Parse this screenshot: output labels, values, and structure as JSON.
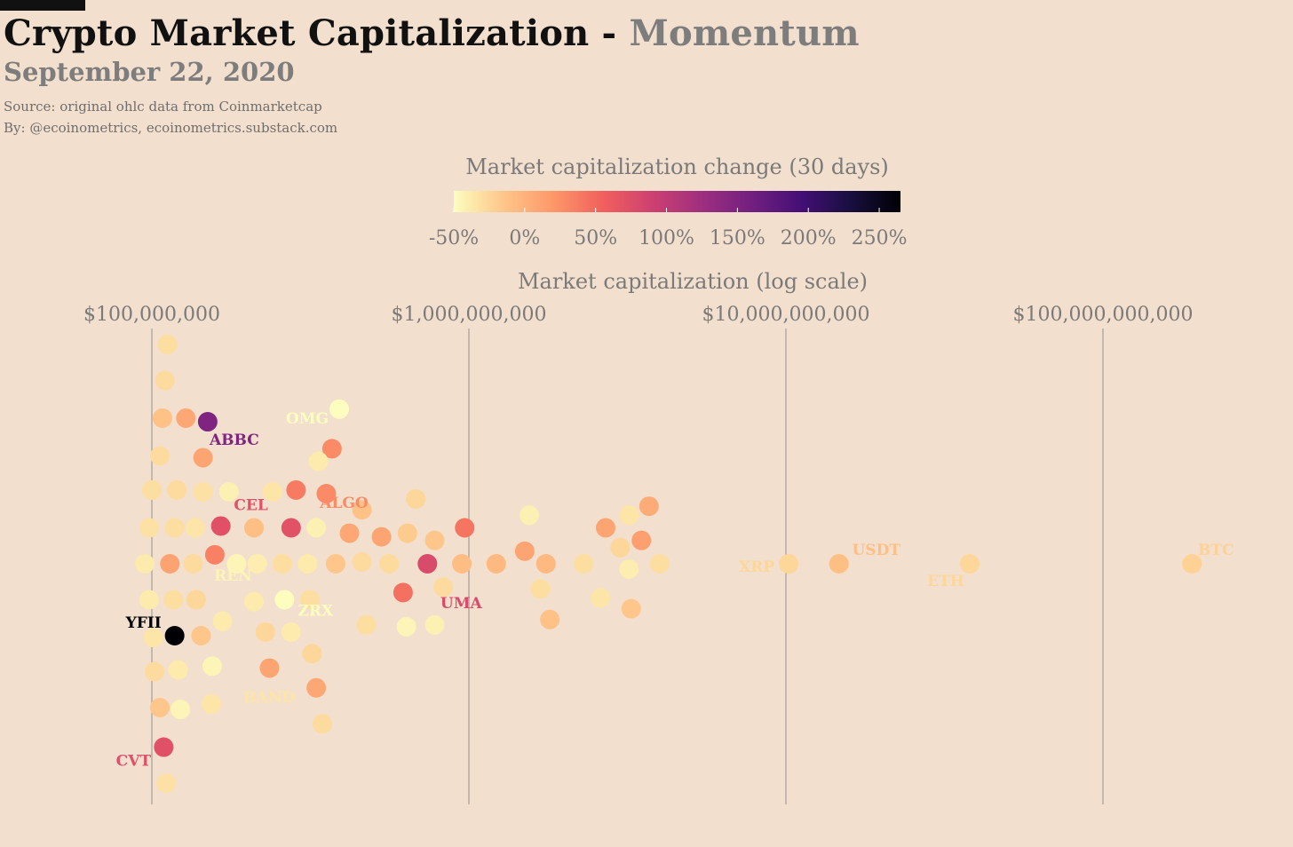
{
  "header": {
    "title_main": "Crypto Market Capitalization -",
    "title_accent": "Momentum",
    "date": "September 22, 2020",
    "source": "Source: original ohlc data from Coinmarketcap",
    "byline": "By: @ecoinometrics, ecoinometrics.substack.com"
  },
  "chart_data": {
    "type": "scatter",
    "title": "Crypto Market Capitalization - Momentum",
    "subtitle": "September 22, 2020",
    "x_axis": {
      "label": "Market capitalization (log scale)",
      "scale": "log",
      "position": "top",
      "ticks": [
        {
          "value": 100000000,
          "label": "$100,000,000"
        },
        {
          "value": 1000000000,
          "label": "$1,000,000,000"
        },
        {
          "value": 10000000000,
          "label": "$10,000,000,000"
        },
        {
          "value": 100000000000,
          "label": "$100,000,000,000"
        }
      ],
      "range": [
        55000000,
        360000000000
      ],
      "grid": true
    },
    "y_axis": {
      "type": "beeswarm",
      "range": [
        -6.25,
        6.25
      ]
    },
    "color_scale": {
      "label": "Market capitalization change (30 days)",
      "colormap": "magma_r",
      "domain": [
        -50,
        265
      ],
      "ticks": [
        {
          "value": -50,
          "label": "-50%"
        },
        {
          "value": 0,
          "label": "0%"
        },
        {
          "value": 50,
          "label": "50%"
        },
        {
          "value": 100,
          "label": "100%"
        },
        {
          "value": 150,
          "label": "150%"
        },
        {
          "value": 200,
          "label": "200%"
        },
        {
          "value": 250,
          "label": "250%"
        }
      ],
      "stops": [
        "#fcfdbf",
        "#fec68a",
        "#fd9869",
        "#f1605d",
        "#cd4071",
        "#9e2f7f",
        "#721f81",
        "#440f76",
        "#180f3e",
        "#000004"
      ]
    },
    "points": [
      {
        "mcap": 112000000,
        "y": 6.1,
        "change": -30
      },
      {
        "mcap": 110000000,
        "y": 5.1,
        "change": -28
      },
      {
        "mcap": 108000000,
        "y": 4.05,
        "change": -12
      },
      {
        "mcap": 128000000,
        "y": 4.05,
        "change": 8
      },
      {
        "mcap": 150000000,
        "y": 3.95,
        "change": 150,
        "label": "ABBC"
      },
      {
        "mcap": 390000000,
        "y": 4.3,
        "change": -50
      },
      {
        "mcap": 370000000,
        "y": 3.2,
        "change": 28
      },
      {
        "mcap": 335000000,
        "y": 2.85,
        "change": -38
      },
      {
        "mcap": 106000000,
        "y": 3.0,
        "change": -28
      },
      {
        "mcap": 145000000,
        "y": 2.95,
        "change": 10
      },
      {
        "mcap": 100000000,
        "y": 2.05,
        "change": -30
      },
      {
        "mcap": 120000000,
        "y": 2.05,
        "change": -28
      },
      {
        "mcap": 145000000,
        "y": 2.0,
        "change": -32
      },
      {
        "mcap": 175000000,
        "y": 2.0,
        "change": -42
      },
      {
        "mcap": 240000000,
        "y": 2.0,
        "change": -35
      },
      {
        "mcap": 285000000,
        "y": 2.05,
        "change": 38
      },
      {
        "mcap": 355000000,
        "y": 1.95,
        "change": 28,
        "label": "ALGO"
      },
      {
        "mcap": 680000000,
        "y": 1.8,
        "change": -25
      },
      {
        "mcap": 460000000,
        "y": 1.5,
        "change": -12
      },
      {
        "mcap": 1550000000,
        "y": 1.35,
        "change": -42
      },
      {
        "mcap": 3200000000,
        "y": 1.35,
        "change": -35
      },
      {
        "mcap": 3700000000,
        "y": 1.6,
        "change": 5
      },
      {
        "mcap": 98000000,
        "y": 1.0,
        "change": -32
      },
      {
        "mcap": 118000000,
        "y": 1.0,
        "change": -30
      },
      {
        "mcap": 137000000,
        "y": 1.0,
        "change": -35
      },
      {
        "mcap": 165000000,
        "y": 1.05,
        "change": 72,
        "label": "CEL"
      },
      {
        "mcap": 210000000,
        "y": 1.0,
        "change": -10
      },
      {
        "mcap": 275000000,
        "y": 1.0,
        "change": 70
      },
      {
        "mcap": 330000000,
        "y": 1.0,
        "change": -42
      },
      {
        "mcap": 420000000,
        "y": 0.85,
        "change": 8
      },
      {
        "mcap": 530000000,
        "y": 0.75,
        "change": 10
      },
      {
        "mcap": 640000000,
        "y": 0.85,
        "change": -18
      },
      {
        "mcap": 780000000,
        "y": 0.65,
        "change": -15
      },
      {
        "mcap": 970000000,
        "y": 1.0,
        "change": 42
      },
      {
        "mcap": 2700000000,
        "y": 1.0,
        "change": 10
      },
      {
        "mcap": 3500000000,
        "y": 0.65,
        "change": 15
      },
      {
        "mcap": 3000000000,
        "y": 0.45,
        "change": -25
      },
      {
        "mcap": 1500000000,
        "y": 0.35,
        "change": 10
      },
      {
        "mcap": 95000000,
        "y": 0.0,
        "change": -38
      },
      {
        "mcap": 114000000,
        "y": 0.0,
        "change": 12
      },
      {
        "mcap": 135000000,
        "y": 0.0,
        "change": -28
      },
      {
        "mcap": 158000000,
        "y": 0.25,
        "change": 35
      },
      {
        "mcap": 185000000,
        "y": 0.0,
        "change": -45,
        "label": "REN"
      },
      {
        "mcap": 215000000,
        "y": 0.0,
        "change": -40
      },
      {
        "mcap": 258000000,
        "y": 0.0,
        "change": -30
      },
      {
        "mcap": 310000000,
        "y": 0.0,
        "change": -38
      },
      {
        "mcap": 380000000,
        "y": 0.0,
        "change": -15
      },
      {
        "mcap": 460000000,
        "y": 0.05,
        "change": -28
      },
      {
        "mcap": 560000000,
        "y": 0.0,
        "change": -28
      },
      {
        "mcap": 740000000,
        "y": 0.0,
        "change": 78,
        "label": "UMA"
      },
      {
        "mcap": 950000000,
        "y": 0.0,
        "change": -8
      },
      {
        "mcap": 1220000000,
        "y": 0.0,
        "change": -5
      },
      {
        "mcap": 1750000000,
        "y": 0.0,
        "change": -5
      },
      {
        "mcap": 2300000000,
        "y": 0.0,
        "change": -30
      },
      {
        "mcap": 3200000000,
        "y": -0.15,
        "change": -40
      },
      {
        "mcap": 4000000000,
        "y": 0.0,
        "change": -30
      },
      {
        "mcap": 10200000000,
        "y": 0.0,
        "change": -25,
        "label": "XRP"
      },
      {
        "mcap": 14700000000,
        "y": 0.0,
        "change": -10,
        "label": "USDT"
      },
      {
        "mcap": 38000000000,
        "y": 0.0,
        "change": -25,
        "label": "ETH"
      },
      {
        "mcap": 191000000000,
        "y": 0.0,
        "change": -22,
        "label": "BTC"
      },
      {
        "mcap": 98000000,
        "y": -1.0,
        "change": -38
      },
      {
        "mcap": 117000000,
        "y": -1.0,
        "change": -30
      },
      {
        "mcap": 138000000,
        "y": -1.0,
        "change": -25
      },
      {
        "mcap": 210000000,
        "y": -1.05,
        "change": -38
      },
      {
        "mcap": 262000000,
        "y": -1.0,
        "change": -50,
        "label": "ZRX"
      },
      {
        "mcap": 315000000,
        "y": -1.0,
        "change": -30
      },
      {
        "mcap": 620000000,
        "y": -0.8,
        "change": 45
      },
      {
        "mcap": 830000000,
        "y": -0.65,
        "change": -28
      },
      {
        "mcap": 1680000000,
        "y": -0.7,
        "change": -30
      },
      {
        "mcap": 2600000000,
        "y": -0.95,
        "change": -35
      },
      {
        "mcap": 3250000000,
        "y": -1.25,
        "change": -15
      },
      {
        "mcap": 101000000,
        "y": -2.05,
        "change": -35
      },
      {
        "mcap": 118000000,
        "y": -2.0,
        "change": 265,
        "label": "YFII"
      },
      {
        "mcap": 143000000,
        "y": -2.0,
        "change": -15
      },
      {
        "mcap": 167000000,
        "y": -1.6,
        "change": -38
      },
      {
        "mcap": 228000000,
        "y": -1.9,
        "change": -25
      },
      {
        "mcap": 275000000,
        "y": -1.9,
        "change": -38
      },
      {
        "mcap": 475000000,
        "y": -1.7,
        "change": -30
      },
      {
        "mcap": 635000000,
        "y": -1.75,
        "change": -45
      },
      {
        "mcap": 780000000,
        "y": -1.7,
        "change": -42
      },
      {
        "mcap": 1800000000,
        "y": -1.55,
        "change": -12
      },
      {
        "mcap": 102000000,
        "y": -3.0,
        "change": -28
      },
      {
        "mcap": 121000000,
        "y": -2.95,
        "change": -38
      },
      {
        "mcap": 155000000,
        "y": -2.85,
        "change": -45
      },
      {
        "mcap": 235000000,
        "y": -2.9,
        "change": 10
      },
      {
        "mcap": 320000000,
        "y": -2.5,
        "change": -25
      },
      {
        "mcap": 330000000,
        "y": -3.45,
        "change": 8
      },
      {
        "mcap": 106000000,
        "y": -4.0,
        "change": -15
      },
      {
        "mcap": 123000000,
        "y": -4.05,
        "change": -45
      },
      {
        "mcap": 154000000,
        "y": -3.9,
        "change": -35,
        "label": "BAND"
      },
      {
        "mcap": 345000000,
        "y": -4.45,
        "change": -28
      },
      {
        "mcap": 109000000,
        "y": -5.1,
        "change": 72,
        "label": "CVT"
      },
      {
        "mcap": 111000000,
        "y": -6.1,
        "change": -32
      }
    ]
  }
}
